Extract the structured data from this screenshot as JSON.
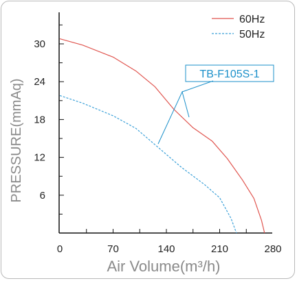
{
  "chart_data": {
    "type": "line",
    "title": "",
    "xlabel": "Air Volume(m³/h)",
    "ylabel": "PRESSURE(mmAq)",
    "xlim": [
      0,
      280
    ],
    "ylim": [
      0,
      36
    ],
    "xticks": [
      0,
      70,
      140,
      210,
      280
    ],
    "yticks": [
      6,
      12,
      18,
      24,
      30
    ],
    "grid": false,
    "legend_position": "top-right",
    "annotation": "TB-F105S-1",
    "series": [
      {
        "name": "60Hz",
        "color": "#e0554f",
        "dash": "solid",
        "x": [
          0,
          30,
          70,
          100,
          125,
          150,
          175,
          200,
          220,
          240,
          255,
          265,
          269
        ],
        "y": [
          30.8,
          29.8,
          27.9,
          25.7,
          23.2,
          19.6,
          16.7,
          14.6,
          11.8,
          8.4,
          5.5,
          2.0,
          0
        ]
      },
      {
        "name": "50Hz",
        "color": "#3aa0d8",
        "dash": "dashed",
        "x": [
          0,
          30,
          70,
          100,
          130,
          160,
          190,
          210,
          225,
          232
        ],
        "y": [
          21.8,
          20.6,
          18.6,
          16.6,
          13.5,
          10.4,
          7.7,
          5.6,
          2.3,
          0
        ]
      }
    ]
  }
}
